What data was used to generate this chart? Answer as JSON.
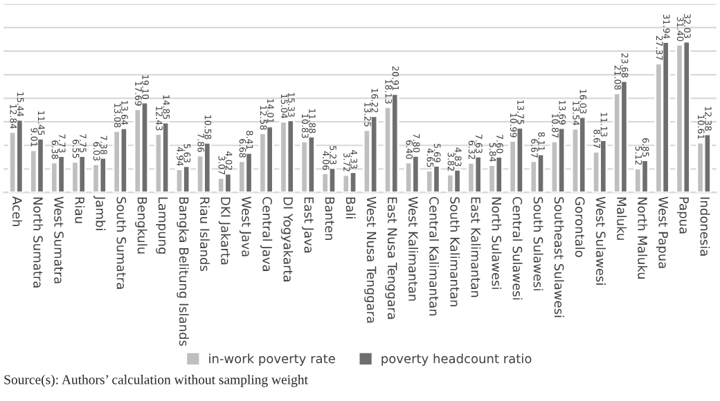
{
  "chart_data": {
    "type": "bar",
    "categories": [
      "Aceh",
      "North Sumatra",
      "West Sumatra",
      "Riau",
      "Jambi",
      "South Sumatra",
      "Bengkulu",
      "Lampung",
      "Bangka Belitung Islands",
      "Riau Islands",
      "DKI Jakarta",
      "West Java",
      "Central Java",
      "DI Yogyakarta",
      "East Java",
      "Banten",
      "Bali",
      "West Nusa Tenggara",
      "East Nusa Tenggara",
      "West Kalimantan",
      "Central Kalimantan",
      "South Kalimantan",
      "East Kalimantan",
      "North Sulawesi",
      "Central Sulawesi",
      "South Sulawesi",
      "Southeast Sulawesi",
      "Gorontalo",
      "West Sulawesi",
      "Maluku",
      "North Maluku",
      "West Papua",
      "Papua",
      "Indonesia"
    ],
    "series": [
      {
        "name": "in-work poverty rate",
        "color": "#bfbfbf",
        "values": [
          12.84,
          9.01,
          6.38,
          6.55,
          6.03,
          13.08,
          17.69,
          12.43,
          4.94,
          7.86,
          3.07,
          6.68,
          12.58,
          15.04,
          10.83,
          4.06,
          3.72,
          13.25,
          18.13,
          6.4,
          4.65,
          3.82,
          6.32,
          5.84,
          10.99,
          6.67,
          10.87,
          13.54,
          8.67,
          21.08,
          5.12,
          27.37,
          31.4,
          10.61
        ],
        "value_labels": [
          "12.84",
          "9.01",
          "6.38",
          "6.55",
          "6.03",
          "13.08",
          "17.69",
          "12.43",
          "4.94",
          "7.86",
          "3.07",
          "6.68",
          "12.58",
          "15.04",
          "10.83",
          "4.06",
          "3.72",
          "13.25",
          "18.13",
          "6.40",
          "4.65",
          "3.82",
          "6.32",
          "5.84",
          "10.99",
          "6.67",
          "10.87",
          "13.54",
          "8.67",
          "21.08",
          "5.12",
          "27.37",
          "31.40",
          "10.61"
        ]
      },
      {
        "name": "poverty headcount ratio",
        "color": "#6e6e6e",
        "values": [
          15.44,
          11.45,
          7.73,
          7.75,
          7.38,
          13.64,
          19.1,
          14.85,
          5.63,
          10.58,
          4.02,
          8.41,
          14.01,
          15.33,
          11.88,
          5.23,
          4.33,
          16.22,
          20.91,
          7.8,
          5.69,
          4.83,
          7.63,
          7.6,
          13.75,
          8.11,
          13.69,
          16.03,
          11.13,
          23.68,
          6.85,
          31.94,
          32.03,
          12.38
        ],
        "value_labels": [
          "15.44",
          "11.45",
          "7.73",
          "7.75",
          "7.38",
          "13.64",
          "19.10",
          "14.85",
          "5.63",
          "10.58",
          "4.02",
          "8.41",
          "14.01",
          "15.33",
          "11.88",
          "5.23",
          "4.33",
          "16.22",
          "20.91",
          "7.80",
          "5.69",
          "4.83",
          "7.63",
          "7.60",
          "13.75",
          "8.11",
          "13.69",
          "16.03",
          "11.13",
          "23.68",
          "6.85",
          "31.94",
          "32.03",
          "12.38"
        ]
      }
    ],
    "ylim": [
      0,
      40
    ],
    "yticks": [
      {
        "value": 0,
        "label": null
      },
      {
        "value": 5,
        "label": null
      },
      {
        "value": 10,
        "label": null
      },
      {
        "value": 15,
        "label": null
      },
      {
        "value": 20,
        "label": null
      },
      {
        "value": 25,
        "label": null
      },
      {
        "value": 30,
        "label": null
      },
      {
        "value": 35,
        "label": null
      },
      {
        "value": 40,
        "label": null
      }
    ],
    "tick_labels": "x",
    "grid": "y",
    "legend": "bottom",
    "annotations": [
      "Source(s): Authors’ calculation without sampling weight"
    ]
  }
}
